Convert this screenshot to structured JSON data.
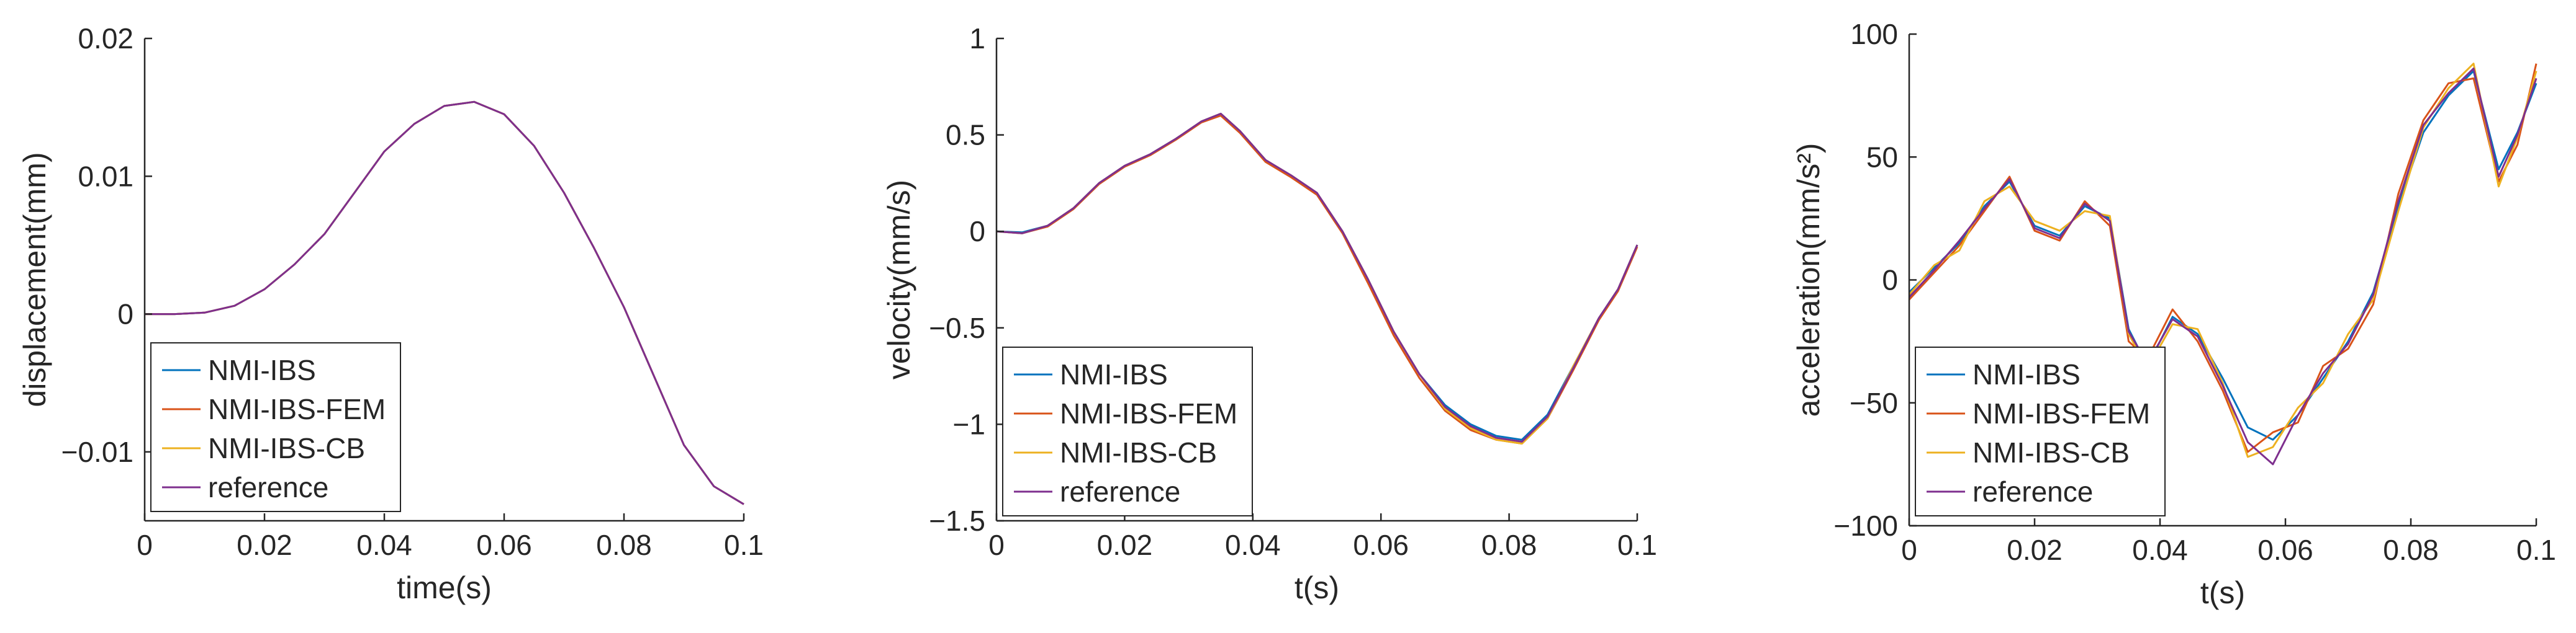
{
  "colors": {
    "NMI-IBS": "#0072BD",
    "NMI-IBS-FEM": "#D95319",
    "NMI-IBS-CB": "#EDB120",
    "reference": "#7E2F8E",
    "axis": "#262626"
  },
  "chart_data": [
    {
      "type": "line",
      "xlabel": "time(s)",
      "ylabel": "displacement(mm)",
      "xlim": [
        0,
        0.1
      ],
      "ylim": [
        -0.015,
        0.02
      ],
      "xticks": [
        0,
        0.02,
        0.04,
        0.06,
        0.08,
        0.1
      ],
      "xtick_labels": [
        "0",
        "0.02",
        "0.04",
        "0.06",
        "0.08",
        "0.1"
      ],
      "yticks": [
        -0.01,
        0,
        0.01,
        0.02
      ],
      "ytick_labels": [
        "−0.01",
        "0",
        "0.01",
        "0.02"
      ],
      "grid": false,
      "legend_position": "bottom-left",
      "series": [
        {
          "name": "NMI-IBS",
          "x": [
            0,
            0.005,
            0.01,
            0.015,
            0.02,
            0.025,
            0.03,
            0.035,
            0.04,
            0.045,
            0.05,
            0.055,
            0.06,
            0.065,
            0.07,
            0.075,
            0.08,
            0.085,
            0.09,
            0.095,
            0.1
          ],
          "y": [
            0,
            0,
            0.0001,
            0.0006,
            0.0018,
            0.0036,
            0.0058,
            0.0088,
            0.0118,
            0.0138,
            0.0151,
            0.0154,
            0.0145,
            0.0122,
            0.0088,
            0.0048,
            0.0005,
            -0.0045,
            -0.0095,
            -0.0125,
            -0.0138
          ]
        },
        {
          "name": "NMI-IBS-FEM",
          "x": [
            0,
            0.005,
            0.01,
            0.015,
            0.02,
            0.025,
            0.03,
            0.035,
            0.04,
            0.045,
            0.05,
            0.055,
            0.06,
            0.065,
            0.07,
            0.075,
            0.08,
            0.085,
            0.09,
            0.095,
            0.1
          ],
          "y": [
            0,
            0,
            0.0001,
            0.0006,
            0.0018,
            0.0036,
            0.0058,
            0.0088,
            0.0118,
            0.0138,
            0.0151,
            0.0154,
            0.0145,
            0.0122,
            0.0088,
            0.0048,
            0.0005,
            -0.0045,
            -0.0095,
            -0.0125,
            -0.0138
          ]
        },
        {
          "name": "NMI-IBS-CB",
          "x": [
            0,
            0.005,
            0.01,
            0.015,
            0.02,
            0.025,
            0.03,
            0.035,
            0.04,
            0.045,
            0.05,
            0.055,
            0.06,
            0.065,
            0.07,
            0.075,
            0.08,
            0.085,
            0.09,
            0.095,
            0.1
          ],
          "y": [
            0,
            0,
            0.0001,
            0.0006,
            0.0018,
            0.0036,
            0.0058,
            0.0088,
            0.0118,
            0.0138,
            0.0151,
            0.0154,
            0.0145,
            0.0122,
            0.0088,
            0.0048,
            0.0005,
            -0.0045,
            -0.0095,
            -0.0125,
            -0.0138
          ]
        },
        {
          "name": "reference",
          "x": [
            0,
            0.005,
            0.01,
            0.015,
            0.02,
            0.025,
            0.03,
            0.035,
            0.04,
            0.045,
            0.05,
            0.055,
            0.06,
            0.065,
            0.07,
            0.075,
            0.08,
            0.085,
            0.09,
            0.095,
            0.1
          ],
          "y": [
            0,
            0,
            0.0001,
            0.0006,
            0.0018,
            0.0036,
            0.0058,
            0.0088,
            0.0118,
            0.0138,
            0.0151,
            0.0154,
            0.0145,
            0.0122,
            0.0088,
            0.0048,
            0.0005,
            -0.0045,
            -0.0095,
            -0.0125,
            -0.0138
          ]
        }
      ]
    },
    {
      "type": "line",
      "xlabel": "t(s)",
      "ylabel": "velocity(mm/s)",
      "xlim": [
        0,
        0.1
      ],
      "ylim": [
        -1.5,
        1
      ],
      "xticks": [
        0,
        0.02,
        0.04,
        0.06,
        0.08,
        0.1
      ],
      "xtick_labels": [
        "0",
        "0.02",
        "0.04",
        "0.06",
        "0.08",
        "0.1"
      ],
      "yticks": [
        -1.5,
        -1,
        -0.5,
        0,
        0.5,
        1
      ],
      "ytick_labels": [
        "−1.5",
        "−1",
        "−0.5",
        "0",
        "0.5",
        "1"
      ],
      "grid": false,
      "legend_position": "bottom-left",
      "series": [
        {
          "name": "NMI-IBS",
          "x": [
            0,
            0.004,
            0.008,
            0.012,
            0.016,
            0.02,
            0.024,
            0.028,
            0.032,
            0.035,
            0.038,
            0.042,
            0.046,
            0.05,
            0.054,
            0.058,
            0.062,
            0.066,
            0.07,
            0.074,
            0.078,
            0.082,
            0.086,
            0.09,
            0.094,
            0.097,
            0.1
          ],
          "y": [
            0,
            -0.005,
            0.03,
            0.12,
            0.25,
            0.34,
            0.4,
            0.48,
            0.57,
            0.61,
            0.52,
            0.37,
            0.29,
            0.2,
            0,
            -0.25,
            -0.52,
            -0.74,
            -0.9,
            -1.0,
            -1.06,
            -1.08,
            -0.95,
            -0.7,
            -0.45,
            -0.3,
            -0.07
          ]
        },
        {
          "name": "NMI-IBS-FEM",
          "x": [
            0,
            0.004,
            0.008,
            0.012,
            0.016,
            0.02,
            0.024,
            0.028,
            0.032,
            0.035,
            0.038,
            0.042,
            0.046,
            0.05,
            0.054,
            0.058,
            0.062,
            0.066,
            0.07,
            0.074,
            0.078,
            0.082,
            0.086,
            0.09,
            0.094,
            0.097,
            0.1
          ],
          "y": [
            0,
            -0.01,
            0.025,
            0.115,
            0.245,
            0.335,
            0.395,
            0.475,
            0.565,
            0.6,
            0.51,
            0.36,
            0.28,
            0.19,
            -0.01,
            -0.27,
            -0.54,
            -0.76,
            -0.93,
            -1.03,
            -1.08,
            -1.1,
            -0.97,
            -0.72,
            -0.46,
            -0.31,
            -0.08
          ]
        },
        {
          "name": "NMI-IBS-CB",
          "x": [
            0,
            0.004,
            0.008,
            0.012,
            0.016,
            0.02,
            0.024,
            0.028,
            0.032,
            0.035,
            0.038,
            0.042,
            0.046,
            0.05,
            0.054,
            0.058,
            0.062,
            0.066,
            0.07,
            0.074,
            0.078,
            0.082,
            0.086,
            0.09,
            0.094,
            0.097,
            0.1
          ],
          "y": [
            0,
            -0.01,
            0.03,
            0.12,
            0.25,
            0.34,
            0.4,
            0.48,
            0.57,
            0.61,
            0.52,
            0.37,
            0.29,
            0.2,
            0,
            -0.25,
            -0.52,
            -0.74,
            -0.92,
            -1.02,
            -1.08,
            -1.1,
            -0.97,
            -0.7,
            -0.45,
            -0.3,
            -0.07
          ]
        },
        {
          "name": "reference",
          "x": [
            0,
            0.004,
            0.008,
            0.012,
            0.016,
            0.02,
            0.024,
            0.028,
            0.032,
            0.035,
            0.038,
            0.042,
            0.046,
            0.05,
            0.054,
            0.058,
            0.062,
            0.066,
            0.07,
            0.074,
            0.078,
            0.082,
            0.086,
            0.09,
            0.094,
            0.097,
            0.1
          ],
          "y": [
            0,
            -0.01,
            0.03,
            0.12,
            0.25,
            0.34,
            0.4,
            0.48,
            0.57,
            0.61,
            0.52,
            0.37,
            0.29,
            0.2,
            0,
            -0.25,
            -0.52,
            -0.74,
            -0.91,
            -1.01,
            -1.07,
            -1.09,
            -0.96,
            -0.71,
            -0.45,
            -0.3,
            -0.07
          ]
        }
      ]
    },
    {
      "type": "line",
      "xlabel": "t(s)",
      "ylabel": "acceleration(mm/s²)",
      "xlim": [
        0,
        0.1
      ],
      "ylim": [
        -100,
        100
      ],
      "xticks": [
        0,
        0.02,
        0.04,
        0.06,
        0.08,
        0.1
      ],
      "xtick_labels": [
        "0",
        "0.02",
        "0.04",
        "0.06",
        "0.08",
        "0.1"
      ],
      "yticks": [
        -100,
        -50,
        0,
        50,
        100
      ],
      "ytick_labels": [
        "−100",
        "−50",
        "0",
        "50",
        "100"
      ],
      "grid": false,
      "legend_position": "bottom-left",
      "series": [
        {
          "name": "NMI-IBS",
          "x": [
            0,
            0.004,
            0.008,
            0.012,
            0.016,
            0.02,
            0.024,
            0.028,
            0.032,
            0.035,
            0.038,
            0.042,
            0.046,
            0.05,
            0.054,
            0.058,
            0.062,
            0.066,
            0.07,
            0.074,
            0.078,
            0.082,
            0.086,
            0.09,
            0.094,
            0.097,
            0.1
          ],
          "y": [
            -5,
            5,
            15,
            30,
            40,
            22,
            18,
            30,
            25,
            -20,
            -35,
            -15,
            -22,
            -40,
            -60,
            -65,
            -55,
            -40,
            -25,
            -5,
            30,
            60,
            75,
            85,
            45,
            60,
            80
          ]
        },
        {
          "name": "NMI-IBS-FEM",
          "x": [
            0,
            0.004,
            0.008,
            0.012,
            0.016,
            0.02,
            0.024,
            0.028,
            0.032,
            0.035,
            0.038,
            0.042,
            0.046,
            0.05,
            0.054,
            0.058,
            0.062,
            0.066,
            0.07,
            0.074,
            0.078,
            0.082,
            0.086,
            0.09,
            0.094,
            0.097,
            0.1
          ],
          "y": [
            -8,
            3,
            14,
            28,
            42,
            20,
            16,
            32,
            22,
            -25,
            -32,
            -12,
            -25,
            -45,
            -70,
            -62,
            -58,
            -35,
            -28,
            -10,
            35,
            65,
            80,
            82,
            40,
            55,
            88
          ]
        },
        {
          "name": "NMI-IBS-CB",
          "x": [
            0,
            0.004,
            0.008,
            0.012,
            0.016,
            0.02,
            0.024,
            0.028,
            0.032,
            0.035,
            0.038,
            0.042,
            0.046,
            0.05,
            0.054,
            0.058,
            0.062,
            0.066,
            0.07,
            0.074,
            0.078,
            0.082,
            0.086,
            0.09,
            0.094,
            0.097,
            0.1
          ],
          "y": [
            -6,
            6,
            12,
            32,
            38,
            24,
            20,
            28,
            26,
            -22,
            -36,
            -18,
            -20,
            -42,
            -72,
            -68,
            -52,
            -42,
            -22,
            -8,
            28,
            62,
            78,
            88,
            38,
            58,
            85
          ]
        },
        {
          "name": "reference",
          "x": [
            0,
            0.004,
            0.008,
            0.012,
            0.016,
            0.02,
            0.024,
            0.028,
            0.032,
            0.035,
            0.038,
            0.042,
            0.046,
            0.05,
            0.054,
            0.058,
            0.062,
            0.066,
            0.07,
            0.074,
            0.078,
            0.082,
            0.086,
            0.09,
            0.094,
            0.097,
            0.1
          ],
          "y": [
            -7,
            4,
            16,
            29,
            41,
            21,
            17,
            31,
            24,
            -21,
            -34,
            -16,
            -23,
            -43,
            -66,
            -75,
            -55,
            -38,
            -26,
            -6,
            32,
            63,
            76,
            86,
            42,
            59,
            82
          ]
        }
      ]
    }
  ]
}
